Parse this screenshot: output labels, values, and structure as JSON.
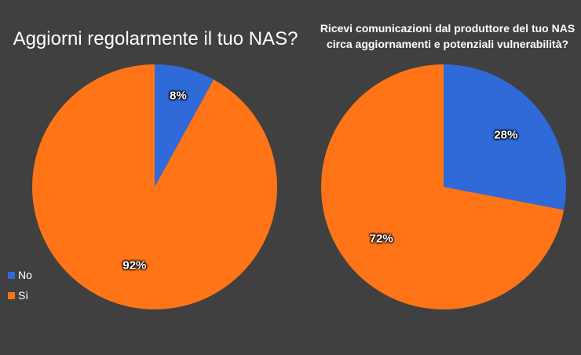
{
  "colors": {
    "background": "#404040",
    "no": "#2f6ad8",
    "si": "#ff7417"
  },
  "legend": [
    {
      "label": "No",
      "color": "#2f6ad8"
    },
    {
      "label": "Sì",
      "color": "#ff7417"
    }
  ],
  "chart_data": [
    {
      "type": "pie",
      "title": "Aggiorni regolarmente il tuo NAS?",
      "categories": [
        "No",
        "Sì"
      ],
      "values": [
        8,
        92
      ],
      "value_labels": [
        "8%",
        "92%"
      ],
      "colors": [
        "#2f6ad8",
        "#ff7417"
      ],
      "legend_position": "bottom-left"
    },
    {
      "type": "pie",
      "title": "Ricevi comunicazioni dal produttore del tuo NAS circa aggiornamenti e potenziali vulnerabilità?",
      "categories": [
        "No",
        "Sì"
      ],
      "values": [
        28,
        72
      ],
      "value_labels": [
        "28%",
        "72%"
      ],
      "colors": [
        "#2f6ad8",
        "#ff7417"
      ]
    }
  ]
}
